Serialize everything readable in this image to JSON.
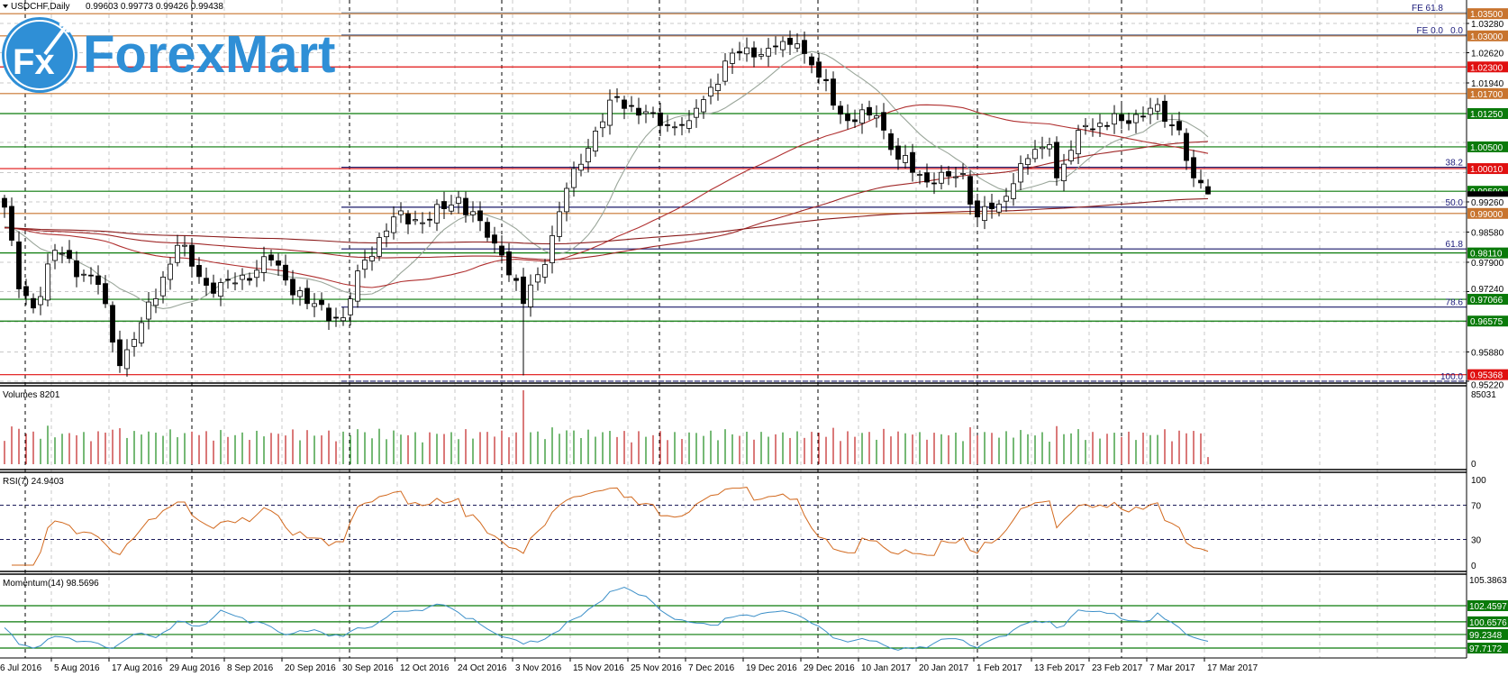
{
  "header": {
    "symbol_info": "USDCHF,Daily",
    "ohlc": "0.99603 0.99773 0.99426 0.99438"
  },
  "logo": {
    "text": "ForexMart",
    "badge": "Fx",
    "color": "#2f8fd6"
  },
  "chart_data": {
    "type": "candlestick",
    "symbol": "USDCHF",
    "timeframe": "Daily",
    "last": {
      "open": 0.99603,
      "high": 0.99773,
      "low": 0.99426,
      "close": 0.99438
    },
    "close_keypoints": [
      [
        0,
        0.9914
      ],
      [
        2,
        0.973
      ],
      [
        4,
        0.9687
      ],
      [
        7,
        0.9817
      ],
      [
        13,
        0.974
      ],
      [
        16,
        0.9557
      ],
      [
        19,
        0.9654
      ],
      [
        24,
        0.9828
      ],
      [
        29,
        0.972
      ],
      [
        37,
        0.9795
      ],
      [
        42,
        0.9697
      ],
      [
        47,
        0.9665
      ],
      [
        50,
        0.9795
      ],
      [
        54,
        0.9892
      ],
      [
        59,
        0.9886
      ],
      [
        63,
        0.9936
      ],
      [
        69,
        0.9806
      ],
      [
        72,
        0.9697
      ],
      [
        74,
        0.9762
      ],
      [
        76,
        0.985
      ],
      [
        79,
        1.0001
      ],
      [
        85,
        1.0163
      ],
      [
        91,
        1.0098
      ],
      [
        95,
        1.0109
      ],
      [
        101,
        1.0261
      ],
      [
        106,
        1.0272
      ],
      [
        110,
        1.0282
      ],
      [
        113,
        1.0207
      ],
      [
        117,
        1.0109
      ],
      [
        121,
        1.012
      ],
      [
        124,
        1.0022
      ],
      [
        129,
        0.9968
      ],
      [
        133,
        0.999
      ],
      [
        135,
        0.9892
      ],
      [
        138,
        0.9921
      ],
      [
        141,
        1.0012
      ],
      [
        145,
        1.0055
      ],
      [
        146,
        0.998
      ],
      [
        150,
        1.0098
      ],
      [
        155,
        1.0109
      ],
      [
        159,
        1.0137
      ],
      [
        163,
        1.0088
      ],
      [
        165,
        0.998
      ],
      [
        167,
        0.99438
      ]
    ],
    "candle_count": 168,
    "moving_averages": [
      {
        "period": 13,
        "color": "#9aa69a"
      },
      {
        "period": 50,
        "color": "#b03030"
      },
      {
        "period": 100,
        "color": "#a02828"
      },
      {
        "period": 200,
        "color": "#8b1c1c"
      }
    ],
    "price_axis": {
      "min": 0.9522,
      "max": 1.0328,
      "ticks": [
        "1.03280",
        "1.02620",
        "1.01940",
        "0.99260",
        "0.98580",
        "0.97900",
        "0.97240",
        "0.95880",
        "0.95220"
      ]
    },
    "levels": [
      {
        "label": "1.03500",
        "value": 1.035,
        "color": "#c8742e"
      },
      {
        "label": "1.03000",
        "value": 1.03,
        "color": "#c8742e"
      },
      {
        "label": "1.02300",
        "value": 1.023,
        "color": "#e01010"
      },
      {
        "label": "1.01700",
        "value": 1.017,
        "color": "#c8742e"
      },
      {
        "label": "1.01250",
        "value": 1.0125,
        "color": "#0a7a0a"
      },
      {
        "label": "1.00500",
        "value": 1.005,
        "color": "#0a7a0a"
      },
      {
        "label": "1.00010",
        "value": 1.0001,
        "color": "#e01010"
      },
      {
        "label": "0.99500",
        "value": 0.995,
        "color": "#0a7a0a"
      },
      {
        "label": "0.99000",
        "value": 0.99,
        "color": "#c8742e"
      },
      {
        "label": "0.98110",
        "value": 0.9811,
        "color": "#0a7a0a"
      },
      {
        "label": "0.97066",
        "value": 0.97066,
        "color": "#0a7a0a"
      },
      {
        "label": "0.96575",
        "value": 0.96575,
        "color": "#0a7a0a"
      },
      {
        "label": "0.95368",
        "value": 0.95368,
        "color": "#e01010"
      }
    ],
    "fibonacci": [
      {
        "label": "0.0",
        "value": 1.0302
      },
      {
        "label": "38.2",
        "value": 1.0004
      },
      {
        "label": "50.0",
        "value": 0.9914
      },
      {
        "label": "61.8",
        "value": 0.982
      },
      {
        "label": "78.6",
        "value": 0.9689
      },
      {
        "label": "100.0",
        "value": 0.9522
      }
    ],
    "fibo_expansion": [
      {
        "label": "FE 61.8",
        "value": 1.0352
      },
      {
        "label": "FE 0.0",
        "value": 1.0302
      }
    ],
    "time_labels": [
      "6 Jul 2016",
      "5 Aug 2016",
      "17 Aug 2016",
      "29 Aug 2016",
      "8 Sep 2016",
      "20 Sep 2016",
      "30 Sep 2016",
      "12 Oct 2016",
      "24 Oct 2016",
      "3 Nov 2016",
      "15 Nov 2016",
      "25 Nov 2016",
      "7 Dec 2016",
      "19 Dec 2016",
      "29 Dec 2016",
      "10 Jan 2017",
      "20 Jan 2017",
      "1 Feb 2017",
      "13 Feb 2017",
      "23 Feb 2017",
      "7 Mar 2017",
      "17 Mar 2017"
    ],
    "volumes": {
      "title": "Volumes 8201",
      "max_label": "85031",
      "max": 85031,
      "zero_label": "0"
    },
    "rsi": {
      "title": "RSI(7) 24.9403",
      "period": 7,
      "levels": [
        70,
        30
      ],
      "ticks": [
        "100",
        "70",
        "30",
        "0"
      ]
    },
    "momentum": {
      "title": "Momentum(14) 98.5696",
      "period": 14,
      "max_label": "105.3863",
      "max": 105.3863,
      "levels": [
        {
          "label": "102.4597",
          "value": 102.4597
        },
        {
          "label": "100.6576",
          "value": 100.6576
        },
        {
          "label": "99.2348",
          "value": 99.2348
        },
        {
          "label": "97.7172",
          "value": 97.7172
        }
      ]
    }
  }
}
